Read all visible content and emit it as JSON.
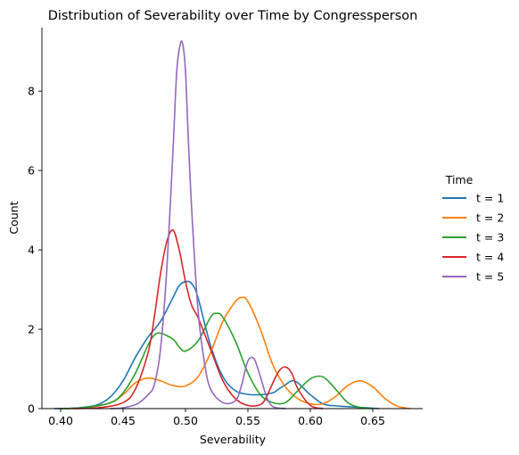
{
  "chart_data": {
    "type": "line",
    "title": "Distribution of Severability over Time by Congressperson",
    "xlabel": "Severability",
    "ylabel": "Count",
    "xlim": [
      0.385,
      0.69
    ],
    "ylim": [
      0,
      9.6
    ],
    "xticks": [
      {
        "value": 0.4,
        "label": "0.40"
      },
      {
        "value": 0.45,
        "label": "0.45"
      },
      {
        "value": 0.5,
        "label": "0.50"
      },
      {
        "value": 0.55,
        "label": "0.55"
      },
      {
        "value": 0.6,
        "label": "0.60"
      },
      {
        "value": 0.65,
        "label": "0.65"
      }
    ],
    "yticks": [
      {
        "value": 0,
        "label": "0"
      },
      {
        "value": 2,
        "label": "2"
      },
      {
        "value": 4,
        "label": "4"
      },
      {
        "value": 6,
        "label": "6"
      },
      {
        "value": 8,
        "label": "8"
      }
    ],
    "grid": false,
    "legend": {
      "title": "Time",
      "placement": "right"
    },
    "series": [
      {
        "name": "t = 1",
        "color": "#1f77b4",
        "x": [
          0.395,
          0.41,
          0.42,
          0.43,
          0.44,
          0.45,
          0.46,
          0.47,
          0.48,
          0.49,
          0.495,
          0.5,
          0.505,
          0.51,
          0.52,
          0.53,
          0.54,
          0.55,
          0.56,
          0.57,
          0.575,
          0.58,
          0.585,
          0.59,
          0.6,
          0.61,
          0.62,
          0.63,
          0.64,
          0.65,
          0.655
        ],
        "y": [
          0.0,
          0.01,
          0.04,
          0.1,
          0.3,
          0.7,
          1.3,
          1.8,
          2.2,
          2.8,
          3.1,
          3.2,
          3.15,
          2.8,
          1.6,
          0.8,
          0.45,
          0.36,
          0.35,
          0.4,
          0.5,
          0.6,
          0.7,
          0.65,
          0.35,
          0.12,
          0.07,
          0.05,
          0.03,
          0.01,
          0.0
        ]
      },
      {
        "name": "t = 2",
        "color": "#ff7f0e",
        "x": [
          0.4,
          0.42,
          0.44,
          0.45,
          0.46,
          0.47,
          0.48,
          0.49,
          0.5,
          0.51,
          0.52,
          0.53,
          0.54,
          0.545,
          0.55,
          0.56,
          0.57,
          0.58,
          0.59,
          0.6,
          0.61,
          0.62,
          0.63,
          0.64,
          0.65,
          0.66,
          0.67,
          0.68
        ],
        "y": [
          0.0,
          0.02,
          0.15,
          0.35,
          0.65,
          0.77,
          0.7,
          0.58,
          0.57,
          0.8,
          1.4,
          2.2,
          2.7,
          2.8,
          2.7,
          2.0,
          1.1,
          0.55,
          0.25,
          0.12,
          0.12,
          0.3,
          0.58,
          0.7,
          0.55,
          0.25,
          0.06,
          0.0
        ]
      },
      {
        "name": "t = 3",
        "color": "#2ca02c",
        "x": [
          0.4,
          0.42,
          0.44,
          0.45,
          0.46,
          0.47,
          0.475,
          0.48,
          0.49,
          0.495,
          0.5,
          0.51,
          0.52,
          0.525,
          0.53,
          0.54,
          0.55,
          0.56,
          0.57,
          0.58,
          0.59,
          0.6,
          0.61,
          0.62,
          0.63,
          0.64,
          0.65
        ],
        "y": [
          0.0,
          0.03,
          0.15,
          0.4,
          0.9,
          1.6,
          1.85,
          1.9,
          1.75,
          1.55,
          1.45,
          1.7,
          2.3,
          2.4,
          2.3,
          1.7,
          0.9,
          0.35,
          0.15,
          0.15,
          0.45,
          0.75,
          0.8,
          0.5,
          0.15,
          0.03,
          0.0
        ]
      },
      {
        "name": "t = 4",
        "color": "#d62728",
        "x": [
          0.41,
          0.43,
          0.45,
          0.46,
          0.47,
          0.475,
          0.48,
          0.485,
          0.49,
          0.495,
          0.5,
          0.505,
          0.51,
          0.52,
          0.53,
          0.54,
          0.55,
          0.56,
          0.565,
          0.57,
          0.575,
          0.58,
          0.585,
          0.59,
          0.6,
          0.61
        ],
        "y": [
          0.0,
          0.02,
          0.15,
          0.5,
          1.4,
          2.3,
          3.4,
          4.2,
          4.5,
          4.0,
          3.2,
          2.6,
          2.3,
          1.5,
          0.7,
          0.25,
          0.08,
          0.1,
          0.3,
          0.65,
          0.95,
          1.05,
          0.9,
          0.5,
          0.08,
          0.0
        ]
      },
      {
        "name": "t = 5",
        "color": "#9467bd",
        "x": [
          0.44,
          0.45,
          0.46,
          0.465,
          0.47,
          0.475,
          0.48,
          0.485,
          0.49,
          0.493,
          0.496,
          0.498,
          0.5,
          0.502,
          0.505,
          0.51,
          0.515,
          0.52,
          0.53,
          0.54,
          0.545,
          0.55,
          0.555,
          0.56,
          0.565,
          0.57,
          0.58
        ],
        "y": [
          0.0,
          0.02,
          0.1,
          0.2,
          0.35,
          0.6,
          1.5,
          3.5,
          6.5,
          8.5,
          9.2,
          9.15,
          8.5,
          7.0,
          5.0,
          2.5,
          1.2,
          0.5,
          0.15,
          0.2,
          0.6,
          1.2,
          1.25,
          0.8,
          0.3,
          0.05,
          0.0
        ]
      }
    ]
  }
}
